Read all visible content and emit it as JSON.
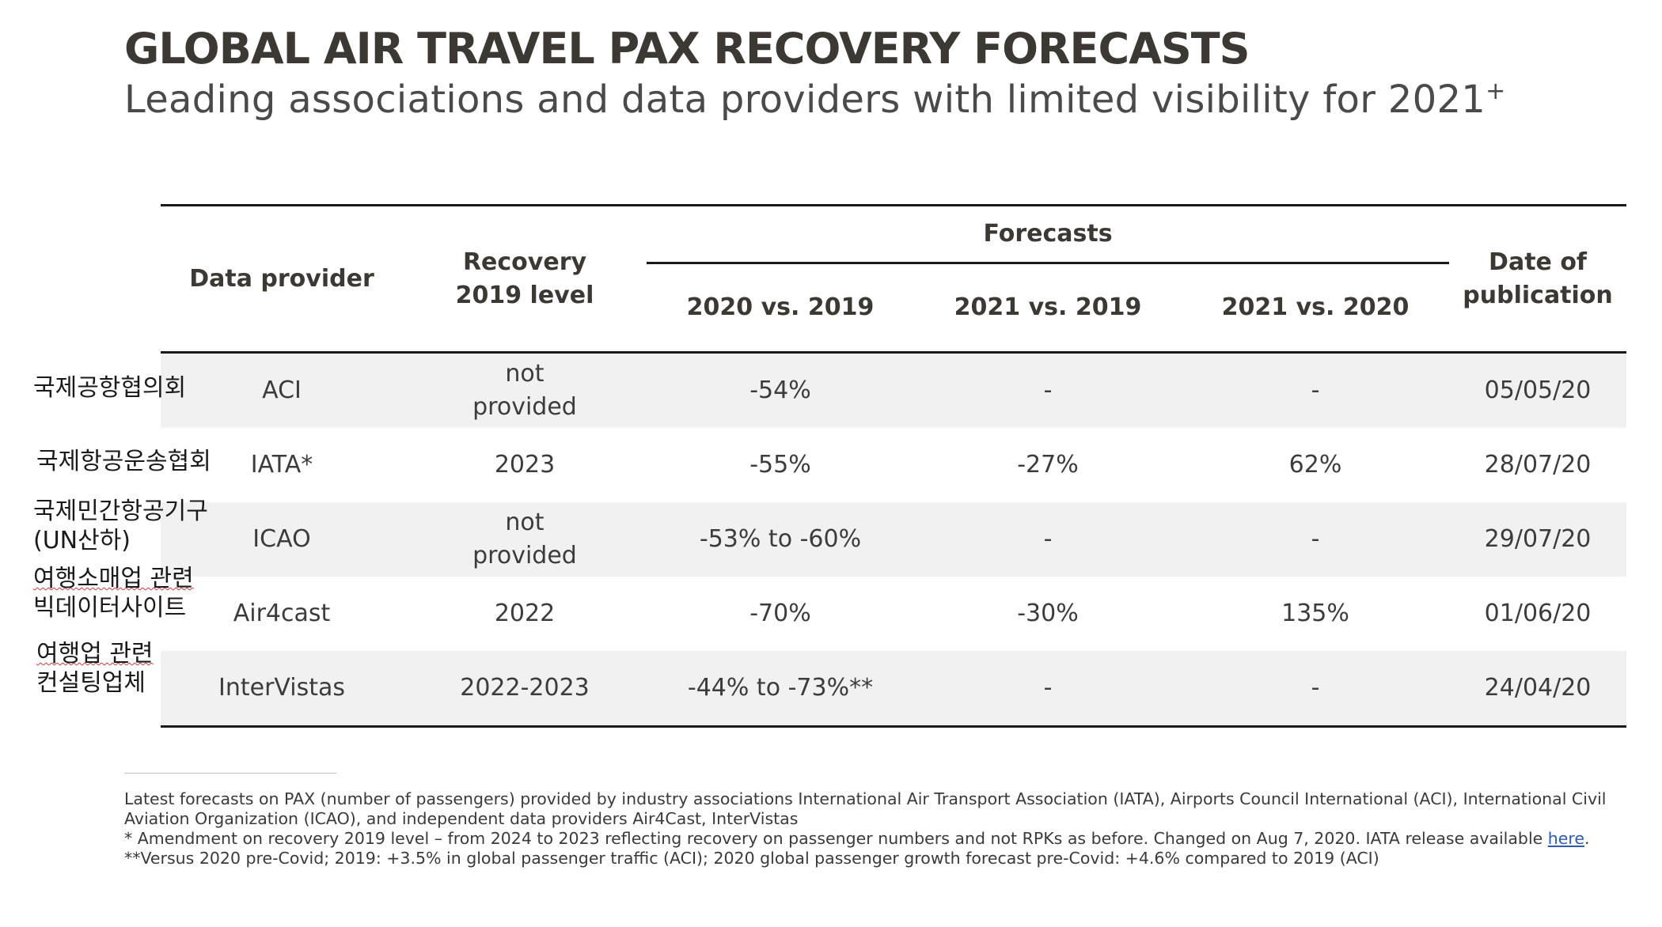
{
  "header": {
    "title": "GLOBAL AIR TRAVEL PAX RECOVERY FORECASTS",
    "subtitle": "Leading associations and data providers with limited visibility for 2021",
    "subtitle_suffix": "+"
  },
  "table": {
    "headers": {
      "provider": "Data provider",
      "recovery_line1": "Recovery",
      "recovery_line2": "2019 level",
      "forecasts": "Forecasts",
      "f1": "2020 vs. 2019",
      "f2": "2021 vs. 2019",
      "f3": "2021 vs. 2020",
      "date_line1": "Date of",
      "date_line2": "publication"
    },
    "rows": [
      {
        "korean": [
          "국제공항협의회"
        ],
        "provider": "ACI",
        "recovery_line1": "not",
        "recovery_line2": "provided",
        "f1": "-54%",
        "f2": "-",
        "f3": "-",
        "date": "05/05/20"
      },
      {
        "korean": [
          "국제항공운송협회"
        ],
        "provider": "IATA*",
        "recovery_line1": "2023",
        "recovery_line2": "",
        "f1": "-55%",
        "f2": "-27%",
        "f3": "62%",
        "date": "28/07/20"
      },
      {
        "korean": [
          "국제민간항공기구",
          "(UN산하)"
        ],
        "provider": "ICAO",
        "recovery_line1": "not",
        "recovery_line2": "provided",
        "f1": "-53% to -60%",
        "f2": "-",
        "f3": "-",
        "date": "29/07/20"
      },
      {
        "korean": [
          "여행소매업 관련",
          "빅데이터사이트"
        ],
        "provider": "Air4cast",
        "recovery_line1": "2022",
        "recovery_line2": "",
        "f1": "-70%",
        "f2": "-30%",
        "f3": "135%",
        "date": "01/06/20"
      },
      {
        "korean": [
          "여행업 관련",
          "컨설팅업체"
        ],
        "provider": "InterVistas",
        "recovery_line1": "2022-2023",
        "recovery_line2": "",
        "f1": "-44% to -73%**",
        "f2": "-",
        "f3": "-",
        "date": "24/04/20"
      }
    ]
  },
  "footnotes": {
    "line1": "Latest forecasts on PAX (number of passengers) provided by industry associations International Air Transport Association (IATA), Airports Council International (ACI), International Civil",
    "line2": "Aviation Organization (ICAO), and independent data providers Air4Cast, InterVistas",
    "line3": "* Amendment on recovery 2019 level – from 2024 to 2023 reflecting recovery on passenger numbers and not RPKs as before. Changed on Aug 7, 2020. IATA release available",
    "link_text": "here",
    "line3_end": ".",
    "line4": "**Versus 2020 pre-Covid; 2019: +3.5% in global passenger traffic (ACI); 2020 global passenger growth forecast pre-Covid: +4.6% compared to 2019 (ACI)"
  }
}
